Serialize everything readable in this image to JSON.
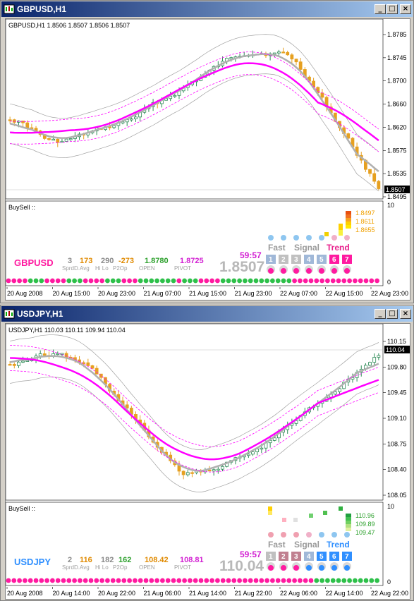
{
  "windows": [
    {
      "title": "GBPUSD,H1",
      "symbol": "GBPUSD",
      "ohlc_label": "GBPUSD,H1  1.8506 1.8507 1.8506 1.8507",
      "price_scale": [
        "1.8785",
        "1.8745",
        "1.8700",
        "1.8660",
        "1.8620",
        "1.8575",
        "1.8535",
        "1.8495"
      ],
      "current_price_tag": "1.8507",
      "subwindow_label": "BuySell ::",
      "sub_scale_top": "10",
      "sub_scale_bottom": "0",
      "levels": [
        "1.8497",
        "1.8611",
        "1.8655"
      ],
      "stats": [
        {
          "value": "3",
          "label": "Sprd",
          "color": "#8a8a8a"
        },
        {
          "value": "173",
          "label": "D.Avg",
          "color": "#e08a00"
        },
        {
          "value": "290",
          "label": "Hi Lo",
          "color": "#8a8a8a"
        },
        {
          "value": "-273",
          "label": "P2Op",
          "color": "#e08a00"
        },
        {
          "value": "1.8780",
          "label": "OPEN",
          "color": "#2ca02c"
        },
        {
          "value": "1.8725",
          "label": "PIVOT",
          "color": "#d21fd2"
        }
      ],
      "timer": "59:57",
      "big_price": "1.8507",
      "fast_label": "Fast",
      "signal_label": "Signal",
      "trend_label": "Trend",
      "numbers": [
        "1",
        "2",
        "3",
        "4",
        "5",
        "6",
        "7"
      ],
      "time_axis": [
        "20 Aug 2008",
        "20 Aug 15:00",
        "20 Aug 23:00",
        "21 Aug 07:00",
        "21 Aug 15:00",
        "21 Aug 23:00",
        "22 Aug 07:00",
        "22 Aug 15:00",
        "22 Aug 23:00"
      ],
      "symbol_color": "#ff1aa0",
      "trend_color": "#e8208c"
    },
    {
      "title": "USDJPY,H1",
      "symbol": "USDJPY",
      "ohlc_label": "USDJPY,H1  110.03 110.11 109.94 110.04",
      "price_scale": [
        "110.15",
        "109.80",
        "109.45",
        "109.10",
        "108.75",
        "108.40",
        "108.05"
      ],
      "current_price_tag": "110.04",
      "subwindow_label": "BuySell ::",
      "sub_scale_top": "10",
      "sub_scale_bottom": "0",
      "levels": [
        "110.96",
        "109.89",
        "109.47"
      ],
      "stats": [
        {
          "value": "2",
          "label": "Sprd",
          "color": "#8a8a8a"
        },
        {
          "value": "116",
          "label": "D.Avg",
          "color": "#e08a00"
        },
        {
          "value": "182",
          "label": "Hi Lo",
          "color": "#8a8a8a"
        },
        {
          "value": "162",
          "label": "P2Op",
          "color": "#2ca02c"
        },
        {
          "value": "108.42",
          "label": "OPEN",
          "color": "#e08a00"
        },
        {
          "value": "108.81",
          "label": "PIVOT",
          "color": "#d21fd2"
        }
      ],
      "timer": "59:57",
      "big_price": "110.04",
      "fast_label": "Fast",
      "signal_label": "Signal",
      "trend_label": "Trend",
      "numbers": [
        "1",
        "2",
        "3",
        "4",
        "5",
        "6",
        "7"
      ],
      "time_axis": [
        "20 Aug 2008",
        "20 Aug 14:00",
        "20 Aug 22:00",
        "21 Aug 06:00",
        "21 Aug 14:00",
        "21 Aug 22:00",
        "22 Aug 06:00",
        "22 Aug 14:00",
        "22 Aug 22:00"
      ],
      "symbol_color": "#2f8fff",
      "trend_color": "#2f8fff"
    }
  ],
  "colors": {
    "bull_candle": "#2e8b57",
    "bear_candle": "#e6a020",
    "ma_fast": "#ff00ff",
    "ma_slow": "#b0b0b0",
    "band": "#a0a0a0",
    "envelope": "#ff00ff"
  }
}
